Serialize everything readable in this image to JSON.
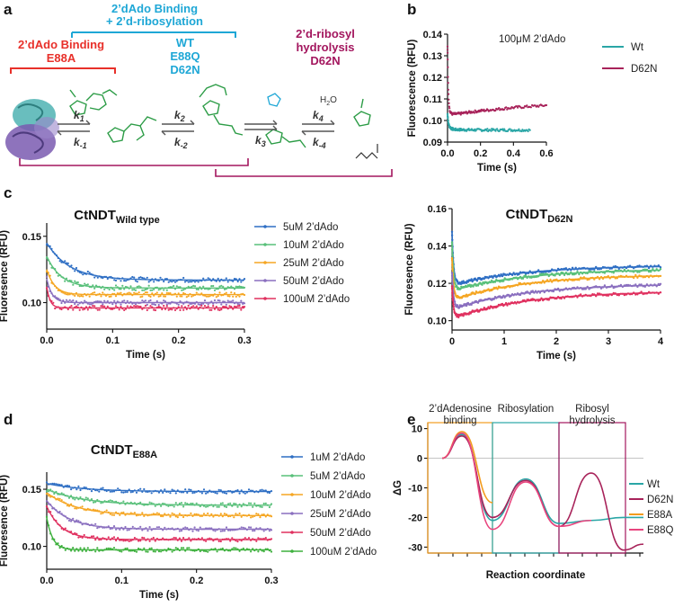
{
  "panels": {
    "a": "a",
    "b": "b",
    "c": "c",
    "d": "d",
    "e": "e"
  },
  "scheme": {
    "binding_ribosylation": {
      "line1": "2’dAdo Binding",
      "line2": "+ 2’d-ribosylation",
      "wt": "WT",
      "e88q": "E88Q",
      "d62n": "D62N",
      "color": "#1ea7d6"
    },
    "binding_e88a": {
      "line1": "2’dAdo Binding",
      "line2": "E88A",
      "color": "#e8302a"
    },
    "hydrolysis": {
      "line1": "2’d-ribosyl",
      "line2": "hydrolysis",
      "line3": "D62N",
      "color": "#a3165e"
    },
    "rates": {
      "k1": "k1",
      "km1": "k-1",
      "k2": "k2",
      "km2": "k-2",
      "k3": "k3",
      "k4": "k4",
      "km4": "k-4",
      "k1_sub": "1",
      "km1_sub": "-1",
      "k2_sub": "2",
      "km2_sub": "-2",
      "k3_sub": "3",
      "k4_sub": "4",
      "km4_sub": "-4",
      "k_letter": "k"
    },
    "water": "H",
    "water_sub": "2",
    "water_o": "O"
  },
  "colors": {
    "wt": "#2aa6a6",
    "d62n": "#a8235a",
    "e88a": "#f39c1e",
    "e88q": "#e8457e",
    "c1": "#2f6fc4",
    "c2": "#59c07a",
    "c3": "#f5a623",
    "c4": "#8a6fbf",
    "c5": "#e0305f",
    "c6": "#2a2a2a"
  },
  "chart_data": [
    {
      "id": "b",
      "type": "scatter",
      "annotation": "100μM 2’dAdo",
      "xlabel": "Time (s)",
      "ylabel": "Fluorescence (RFU)",
      "xlim": [
        0,
        0.6
      ],
      "ylim": [
        0.09,
        0.14
      ],
      "xticks": [
        "0.0",
        "0.2",
        "0.4",
        "0.6"
      ],
      "yticks": [
        "0.09",
        "0.10",
        "0.11",
        "0.12",
        "0.13",
        "0.14"
      ],
      "xtick_values": [
        0,
        0.2,
        0.4,
        0.6
      ],
      "ytick_values": [
        0.09,
        0.1,
        0.11,
        0.12,
        0.13,
        0.14
      ],
      "series": [
        {
          "name": "Wt",
          "color": "#2aa6a6",
          "x": [
            0,
            0.005,
            0.01,
            0.02,
            0.03,
            0.05,
            0.1,
            0.2,
            0.3,
            0.4,
            0.5
          ],
          "y": [
            0.103,
            0.099,
            0.0975,
            0.0965,
            0.096,
            0.0958,
            0.0957,
            0.0956,
            0.0956,
            0.0956,
            0.0956
          ]
        },
        {
          "name": "D62N",
          "color": "#a8235a",
          "x": [
            0,
            0.003,
            0.006,
            0.01,
            0.015,
            0.02,
            0.03,
            0.05,
            0.08,
            0.1,
            0.15,
            0.2,
            0.3,
            0.4,
            0.5,
            0.6
          ],
          "y": [
            0.134,
            0.12,
            0.112,
            0.107,
            0.104,
            0.1035,
            0.103,
            0.103,
            0.1032,
            0.1035,
            0.104,
            0.1045,
            0.1052,
            0.106,
            0.1065,
            0.107
          ]
        }
      ]
    },
    {
      "id": "c1",
      "type": "scatter",
      "title_main": "CtNDT",
      "title_sub": "Wild type",
      "xlabel": "Time (s)",
      "ylabel": "Fluoresence (RFU)",
      "xlim": [
        0,
        0.3
      ],
      "ylim": [
        0.08,
        0.16
      ],
      "xticks": [
        "0.0",
        "0.1",
        "0.2",
        "0.3"
      ],
      "xtick_values": [
        0,
        0.1,
        0.2,
        0.3
      ],
      "yticks": [
        "0.10",
        "0.15"
      ],
      "ytick_values": [
        0.1,
        0.15
      ],
      "legend": [
        "5uM 2’dAdo",
        "10uM 2’dAdo",
        "25uM 2’dAdo",
        "50uM 2’dAdo",
        "100uM 2’dAdo"
      ],
      "series": [
        {
          "name": "5uM 2’dAdo",
          "color": "#2f6fc4",
          "y0": 0.145,
          "yinf": 0.117,
          "tau": 0.035
        },
        {
          "name": "10uM 2’dAdo",
          "color": "#59c07a",
          "y0": 0.135,
          "yinf": 0.111,
          "tau": 0.022
        },
        {
          "name": "25uM 2’dAdo",
          "color": "#f5a623",
          "y0": 0.125,
          "yinf": 0.106,
          "tau": 0.012
        },
        {
          "name": "50uM 2’dAdo",
          "color": "#8a6fbf",
          "y0": 0.118,
          "yinf": 0.1,
          "tau": 0.008
        },
        {
          "name": "100uM 2’dAdo",
          "color": "#e0305f",
          "y0": 0.112,
          "yinf": 0.096,
          "tau": 0.005
        }
      ]
    },
    {
      "id": "c2",
      "type": "scatter",
      "title_main": "CtNDT",
      "title_sub": "D62N",
      "xlabel": "Time (s)",
      "ylabel": "Fluoresence (RFU)",
      "xlim": [
        0,
        4
      ],
      "ylim": [
        0.095,
        0.16
      ],
      "xticks": [
        "0",
        "1",
        "2",
        "3",
        "4"
      ],
      "xtick_values": [
        0,
        1,
        2,
        3,
        4
      ],
      "yticks": [
        "0.10",
        "0.12",
        "0.14",
        "0.16"
      ],
      "ytick_values": [
        0.1,
        0.12,
        0.14,
        0.16
      ],
      "series": [
        {
          "name": "5uM",
          "color": "#2f6fc4",
          "y0": 0.148,
          "ymin": 0.119,
          "yend": 0.129
        },
        {
          "name": "10uM",
          "color": "#59c07a",
          "y0": 0.142,
          "ymin": 0.116,
          "yend": 0.127
        },
        {
          "name": "25uM",
          "color": "#f5a623",
          "y0": 0.134,
          "ymin": 0.111,
          "yend": 0.124
        },
        {
          "name": "50uM",
          "color": "#8a6fbf",
          "y0": 0.126,
          "ymin": 0.106,
          "yend": 0.119
        },
        {
          "name": "100uM",
          "color": "#e0305f",
          "y0": 0.118,
          "ymin": 0.101,
          "yend": 0.115
        }
      ]
    },
    {
      "id": "d",
      "type": "scatter",
      "title_main": "CtNDT",
      "title_sub": "E88A",
      "xlabel": "Time (s)",
      "ylabel": "Fluoresence (RFU)",
      "xlim": [
        0,
        0.3
      ],
      "ylim": [
        0.08,
        0.165
      ],
      "xticks": [
        "0.0",
        "0.1",
        "0.2",
        "0.3"
      ],
      "xtick_values": [
        0,
        0.1,
        0.2,
        0.3
      ],
      "yticks": [
        "0.10",
        "0.15"
      ],
      "ytick_values": [
        0.1,
        0.15
      ],
      "legend": [
        "1uM 2’dAdo",
        "5uM 2’dAdo",
        "10uM 2’dAdo",
        "25uM 2’dAdo",
        "50uM 2’dAdo",
        "100uM 2’dAdo"
      ],
      "series": [
        {
          "name": "1uM 2’dAdo",
          "color": "#2f6fc4",
          "y0": 0.155,
          "yinf": 0.148,
          "tau": 0.05
        },
        {
          "name": "5uM 2’dAdo",
          "color": "#59c07a",
          "y0": 0.15,
          "yinf": 0.136,
          "tau": 0.05
        },
        {
          "name": "10uM 2’dAdo",
          "color": "#f5a623",
          "y0": 0.147,
          "yinf": 0.127,
          "tau": 0.04
        },
        {
          "name": "25uM 2’dAdo",
          "color": "#8a6fbf",
          "y0": 0.14,
          "yinf": 0.115,
          "tau": 0.03
        },
        {
          "name": "50uM 2’dAdo",
          "color": "#e0305f",
          "y0": 0.135,
          "yinf": 0.106,
          "tau": 0.02
        },
        {
          "name": "100uM 2’dAdo",
          "color": "#3db03d",
          "y0": 0.125,
          "yinf": 0.097,
          "tau": 0.008
        }
      ]
    },
    {
      "id": "e",
      "type": "line",
      "xlabel": "Reaction coordinate",
      "ylabel": "ΔG",
      "ylim": [
        -32,
        12
      ],
      "yticks": [
        "10",
        "0",
        "-10",
        "-20",
        "-30"
      ],
      "ytick_values": [
        10,
        0,
        -10,
        -20,
        -30
      ],
      "regions": [
        {
          "label1": "2’dAdenosine",
          "label2": "binding",
          "color": "#f39c1e"
        },
        {
          "label1": "Ribosylation",
          "label2": "",
          "color": "#2aa6a6"
        },
        {
          "label1": "Ribosyl",
          "label2": "hydrolysis",
          "color": "#a3165e"
        }
      ],
      "legend": [
        "Wt",
        "D62N",
        "E88A",
        "E88Q"
      ],
      "series": [
        {
          "name": "Wt",
          "color": "#2aa6a6",
          "x": [
            0,
            1,
            2,
            3,
            4,
            5,
            6,
            7
          ],
          "y": [
            0,
            8,
            -21,
            -7,
            -22,
            -21,
            -20,
            -20
          ]
        },
        {
          "name": "D62N",
          "color": "#a8235a",
          "x": [
            0,
            1,
            2,
            3,
            4,
            5,
            6,
            7
          ],
          "y": [
            0,
            7.5,
            -20,
            -7.5,
            -23,
            -5,
            -31,
            -29
          ]
        },
        {
          "name": "E88A",
          "color": "#f39c1e",
          "x": [
            0,
            1,
            2
          ],
          "y": [
            0,
            9,
            -15
          ]
        },
        {
          "name": "E88Q",
          "color": "#e8457e",
          "x": [
            0,
            1,
            2,
            3,
            4,
            5
          ],
          "y": [
            0,
            8.5,
            -24,
            -8,
            -23,
            -21
          ]
        }
      ]
    }
  ]
}
